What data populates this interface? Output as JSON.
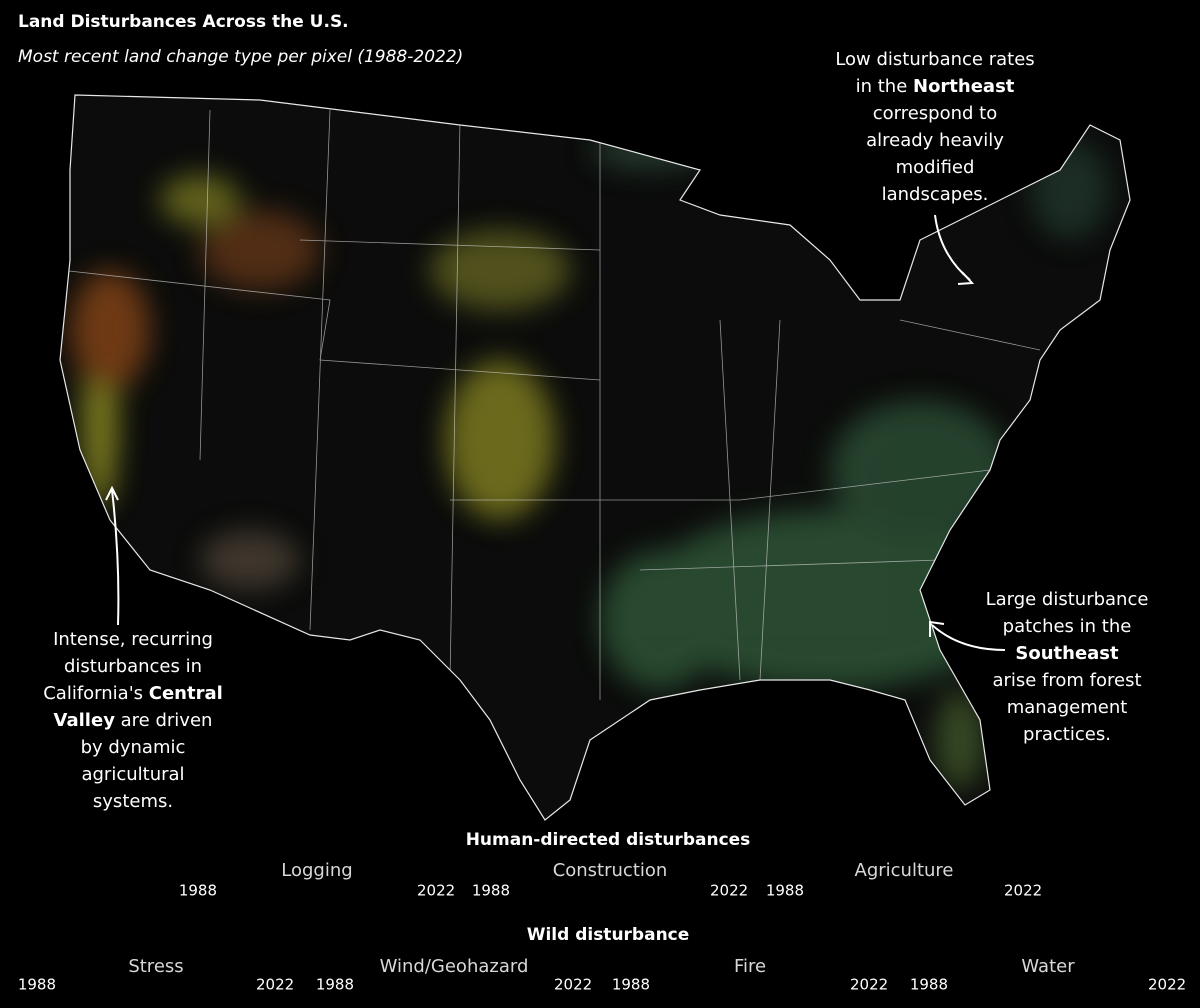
{
  "header": {
    "title": "Land Disturbances Across the U.S.",
    "subtitle": "Most recent land change type per pixel (1988-2022)"
  },
  "annotations": [
    {
      "lines": [
        [
          {
            "text": "Low disturbance rates",
            "bold": false
          }
        ],
        [
          {
            "text": "in the ",
            "bold": false
          },
          {
            "text": "Northeast",
            "bold": true
          }
        ],
        [
          {
            "text": "correspond to",
            "bold": false
          }
        ],
        [
          {
            "text": "already heavily",
            "bold": false
          }
        ],
        [
          {
            "text": "modified",
            "bold": false
          }
        ],
        [
          {
            "text": "landscapes.",
            "bold": false
          }
        ]
      ]
    },
    {
      "lines": [
        [
          {
            "text": "Intense, recurring",
            "bold": false
          }
        ],
        [
          {
            "text": "disturbances in",
            "bold": false
          }
        ],
        [
          {
            "text": "California's ",
            "bold": false
          },
          {
            "text": "Central",
            "bold": true
          }
        ],
        [
          {
            "text": "Valley",
            "bold": true
          },
          {
            "text": " are driven",
            "bold": false
          }
        ],
        [
          {
            "text": "by dynamic",
            "bold": false
          }
        ],
        [
          {
            "text": "agricultural",
            "bold": false
          }
        ],
        [
          {
            "text": "systems.",
            "bold": false
          }
        ]
      ]
    },
    {
      "lines": [
        [
          {
            "text": "Large disturbance",
            "bold": false
          }
        ],
        [
          {
            "text": "patches in the",
            "bold": false
          }
        ],
        [
          {
            "text": "Southeast",
            "bold": true
          }
        ],
        [
          {
            "text": "arise from forest",
            "bold": false
          }
        ],
        [
          {
            "text": "management",
            "bold": false
          }
        ],
        [
          {
            "text": "practices.",
            "bold": false
          }
        ]
      ]
    }
  ],
  "legend": [
    {
      "heading": "Human-directed disturbances",
      "items": [
        {
          "name": "Logging",
          "start": "1988",
          "end": "2022",
          "colors": [
            "#cfe8d4",
            "#2e8b3a"
          ]
        },
        {
          "name": "Construction",
          "start": "1988",
          "end": "2022",
          "colors": [
            "#f4c6c6",
            "#d4202a"
          ]
        },
        {
          "name": "Agriculture",
          "start": "1988",
          "end": "2022",
          "colors": [
            "#f5f2c0",
            "#e8e21a"
          ]
        }
      ]
    },
    {
      "heading": "Wild disturbance",
      "items": [
        {
          "name": "Stress",
          "start": "1988",
          "end": "2022",
          "colors": [
            "#e8e4e0",
            "#8a6a50"
          ]
        },
        {
          "name": "Wind/Geohazard",
          "start": "1988",
          "end": "2022",
          "colors": [
            "#eadff0",
            "#9a5bb8"
          ]
        },
        {
          "name": "Fire",
          "start": "1988",
          "end": "2022",
          "colors": [
            "#fbe2c2",
            "#f07a1a"
          ]
        },
        {
          "name": "Water",
          "start": "1988",
          "end": "2022",
          "colors": [
            "#d8e2f2",
            "#2a58c0"
          ]
        }
      ]
    }
  ]
}
